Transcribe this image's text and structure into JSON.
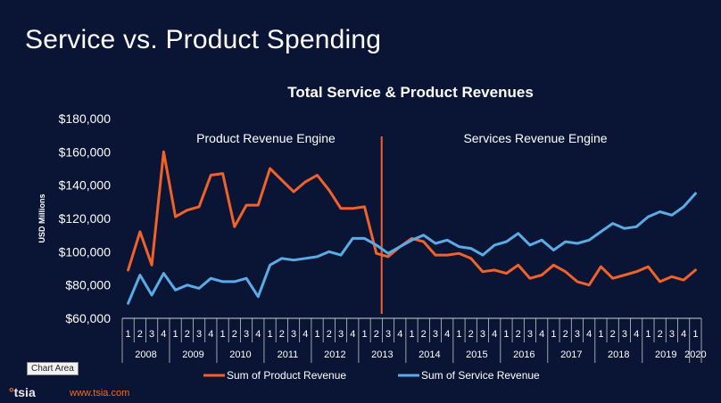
{
  "slide_title": "Service vs. Product Spending",
  "tooltip": "Chart Area",
  "brand": {
    "dot": "°",
    "name": "tsia",
    "url": "www.tsia.com"
  },
  "colors": {
    "background": "#0a1535",
    "product": "#f0622a",
    "service": "#5aabe6",
    "divider": "#f0622a"
  },
  "chart_data": {
    "type": "line",
    "title": "Total Service & Product Revenues",
    "ylabel": "USD Millions",
    "xlabel": "",
    "ylim": [
      60000,
      180000
    ],
    "yticks": [
      "$60,000",
      "$80,000",
      "$100,000",
      "$120,000",
      "$140,000",
      "$160,000",
      "$180,000"
    ],
    "quarter_labels": [
      "1",
      "2",
      "3",
      "4",
      "1",
      "2",
      "3",
      "4",
      "1",
      "2",
      "3",
      "4",
      "1",
      "2",
      "3",
      "4",
      "1",
      "2",
      "3",
      "4",
      "1",
      "2",
      "3",
      "4",
      "1",
      "2",
      "3",
      "4",
      "1",
      "2",
      "3",
      "4",
      "1",
      "2",
      "3",
      "4",
      "1",
      "2",
      "3",
      "4",
      "1",
      "2",
      "3",
      "4",
      "1",
      "2",
      "3",
      "4",
      "1"
    ],
    "years": [
      {
        "label": "2008",
        "start": 0,
        "count": 4
      },
      {
        "label": "2009",
        "start": 4,
        "count": 4
      },
      {
        "label": "2010",
        "start": 8,
        "count": 4
      },
      {
        "label": "2011",
        "start": 12,
        "count": 4
      },
      {
        "label": "2012",
        "start": 16,
        "count": 4
      },
      {
        "label": "2013",
        "start": 20,
        "count": 4
      },
      {
        "label": "2014",
        "start": 24,
        "count": 4
      },
      {
        "label": "2015",
        "start": 28,
        "count": 4
      },
      {
        "label": "2016",
        "start": 32,
        "count": 4
      },
      {
        "label": "2017",
        "start": 36,
        "count": 4
      },
      {
        "label": "2018",
        "start": 40,
        "count": 4
      },
      {
        "label": "2019",
        "start": 44,
        "count": 4
      },
      {
        "label": "2020",
        "start": 48,
        "count": 1
      }
    ],
    "annotations": {
      "left": "Product Revenue Engine",
      "right": "Services Revenue Engine",
      "divider_after_index": 21
    },
    "legend_position": "bottom",
    "series": [
      {
        "name": "Sum of Product Revenue",
        "values": [
          89000,
          112000,
          92000,
          160000,
          121000,
          125000,
          127000,
          146000,
          147000,
          115000,
          128000,
          128000,
          150000,
          143000,
          136000,
          142000,
          146000,
          137000,
          126000,
          126000,
          127000,
          99000,
          97000,
          103000,
          108000,
          106000,
          98000,
          98000,
          99000,
          96000,
          88000,
          89000,
          87000,
          92000,
          84000,
          86000,
          92000,
          88000,
          82000,
          80000,
          91000,
          84000,
          86000,
          88000,
          91000,
          82000,
          85000,
          83000,
          89000
        ]
      },
      {
        "name": "Sum of Service Revenue",
        "values": [
          69000,
          86000,
          74000,
          87000,
          77000,
          80000,
          78000,
          84000,
          82000,
          82000,
          84000,
          73000,
          92000,
          96000,
          95000,
          96000,
          97000,
          100000,
          98000,
          108000,
          108000,
          104000,
          99000,
          103000,
          107000,
          110000,
          105000,
          107000,
          103000,
          102000,
          98000,
          104000,
          106000,
          111000,
          104000,
          107000,
          101000,
          106000,
          105000,
          107000,
          112000,
          117000,
          114000,
          115000,
          121000,
          124000,
          122000,
          127000,
          135000
        ]
      }
    ]
  }
}
